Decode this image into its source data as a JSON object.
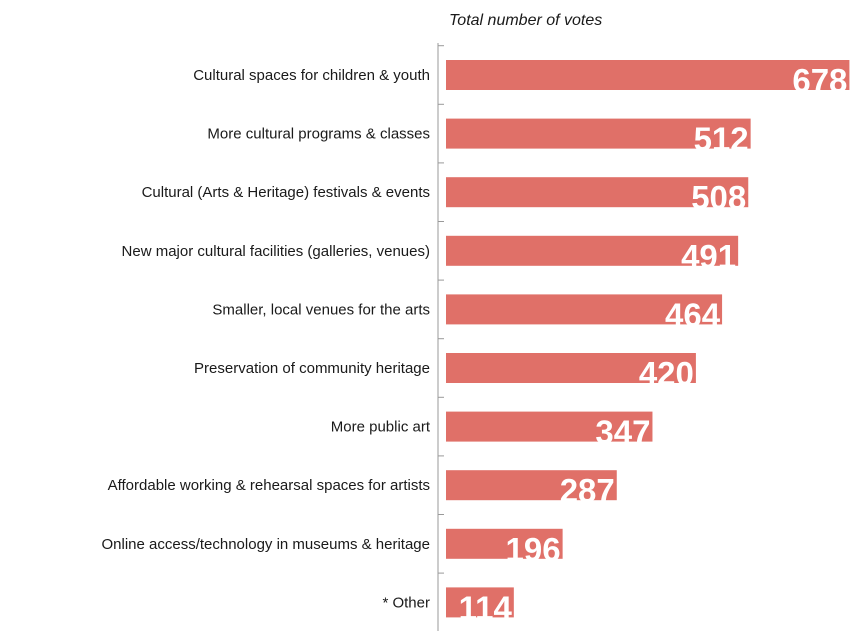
{
  "chart_data": {
    "type": "bar",
    "orientation": "horizontal",
    "title": "Total number of votes",
    "categories": [
      "Cultural spaces for children & youth",
      "More cultural programs & classes",
      "Cultural (Arts & Heritage) festivals & events",
      "New major cultural facilities (galleries, venues)",
      "Smaller, local venues for the arts",
      "Preservation of community heritage",
      "More public art",
      "Affordable working & rehearsal spaces for artists",
      "Online access/technology in museums & heritage",
      "* Other"
    ],
    "values": [
      678,
      512,
      508,
      491,
      464,
      420,
      347,
      287,
      196,
      114
    ],
    "xlim": [
      0,
      700
    ],
    "grid": false,
    "bar_color": "#e07068",
    "label_color": "#ffffff"
  }
}
